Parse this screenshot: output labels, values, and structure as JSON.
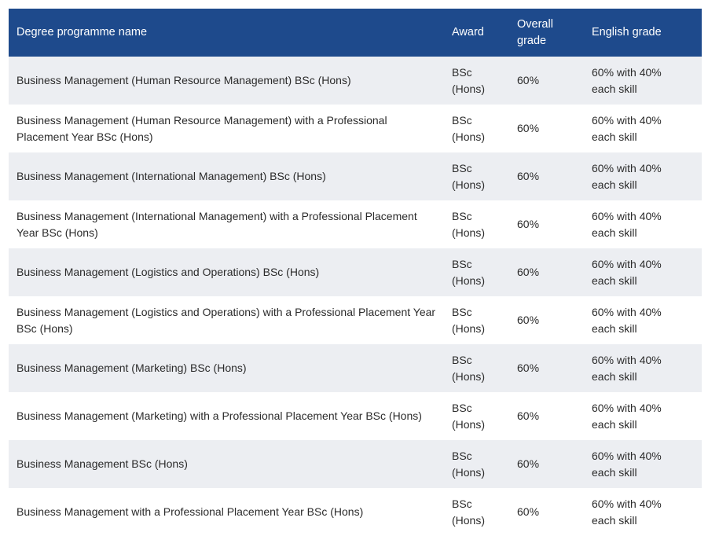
{
  "table": {
    "headers": {
      "name": "Degree programme name",
      "award": "Award",
      "overall": "Overall grade",
      "english": "English grade"
    },
    "rows": [
      {
        "name": "Business Management (Human Resource Management) BSc (Hons)",
        "award": "BSc (Hons)",
        "overall": "60%",
        "english": "60% with 40% each skill"
      },
      {
        "name": "Business Management (Human Resource Management) with a Professional Placement Year BSc (Hons)",
        "award": "BSc (Hons)",
        "overall": "60%",
        "english": "60% with 40% each skill"
      },
      {
        "name": "Business Management (International Management) BSc (Hons)",
        "award": "BSc (Hons)",
        "overall": "60%",
        "english": "60% with 40% each skill"
      },
      {
        "name": "Business Management (International Management) with a Professional Placement Year BSc (Hons)",
        "award": "BSc (Hons)",
        "overall": "60%",
        "english": "60% with 40% each skill"
      },
      {
        "name": "Business Management (Logistics and Operations) BSc (Hons)",
        "award": "BSc (Hons)",
        "overall": "60%",
        "english": "60% with 40% each skill"
      },
      {
        "name": "Business Management (Logistics and Operations) with a Professional Placement Year BSc (Hons)",
        "award": "BSc (Hons)",
        "overall": "60%",
        "english": "60% with 40% each skill"
      },
      {
        "name": "Business Management (Marketing) BSc (Hons)",
        "award": "BSc (Hons)",
        "overall": "60%",
        "english": "60% with 40% each skill"
      },
      {
        "name": "Business Management (Marketing) with a Professional Placement Year BSc (Hons)",
        "award": "BSc (Hons)",
        "overall": "60%",
        "english": "60% with 40% each skill"
      },
      {
        "name": "Business Management BSc (Hons)",
        "award": "BSc (Hons)",
        "overall": "60%",
        "english": "60% with 40% each skill"
      },
      {
        "name": "Business Management with a Professional Placement Year BSc (Hons)",
        "award": "BSc (Hons)",
        "overall": "60%",
        "english": "60% with 40% each skill"
      }
    ]
  },
  "colors": {
    "header_bg": "#1e4a8c",
    "header_text": "#ffffff",
    "row_alt_bg": "#eceef2",
    "row_bg": "#ffffff"
  }
}
